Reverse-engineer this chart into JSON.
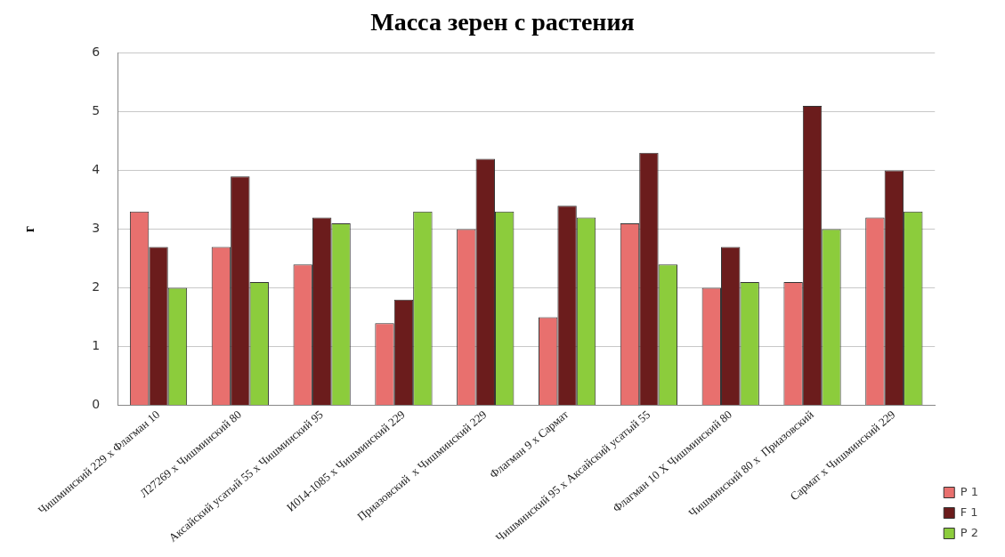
{
  "chart_data": {
    "type": "bar",
    "title": "Масса зерен с растения",
    "ylabel": "г",
    "categories": [
      "Чишминский 229 x Флагман 10",
      "Л27269 x Чишминский 80",
      "Аксайский усатый 55 x Чишминский 95",
      "И014-1085 x Чишминский 229",
      "Приазовский  x Чишминский 229",
      "Флагман 9 x Сармат",
      "Чишминский 95 x Аксайский усатый 55",
      "Флагман 10 X Чишминский 80",
      "Чишминский 80 x  Приазовский",
      "Сармат x Чишминский 229"
    ],
    "series": [
      {
        "name": "P 1",
        "color": "#e8706e",
        "values": [
          3.3,
          2.7,
          2.4,
          1.4,
          3.0,
          1.5,
          3.1,
          2.0,
          2.1,
          3.2
        ]
      },
      {
        "name": "F 1",
        "color": "#6b1c1c",
        "values": [
          2.7,
          3.9,
          3.2,
          1.8,
          4.2,
          3.4,
          4.3,
          2.7,
          5.1,
          4.0
        ]
      },
      {
        "name": "P 2",
        "color": "#8ccc3c",
        "values": [
          2.0,
          2.1,
          3.1,
          3.3,
          3.3,
          3.2,
          2.4,
          2.1,
          3.0,
          3.3
        ]
      }
    ],
    "ylim": [
      0,
      6
    ],
    "yticks": [
      0,
      1,
      2,
      3,
      4,
      5,
      6
    ],
    "grid": "y",
    "legend": "right"
  }
}
